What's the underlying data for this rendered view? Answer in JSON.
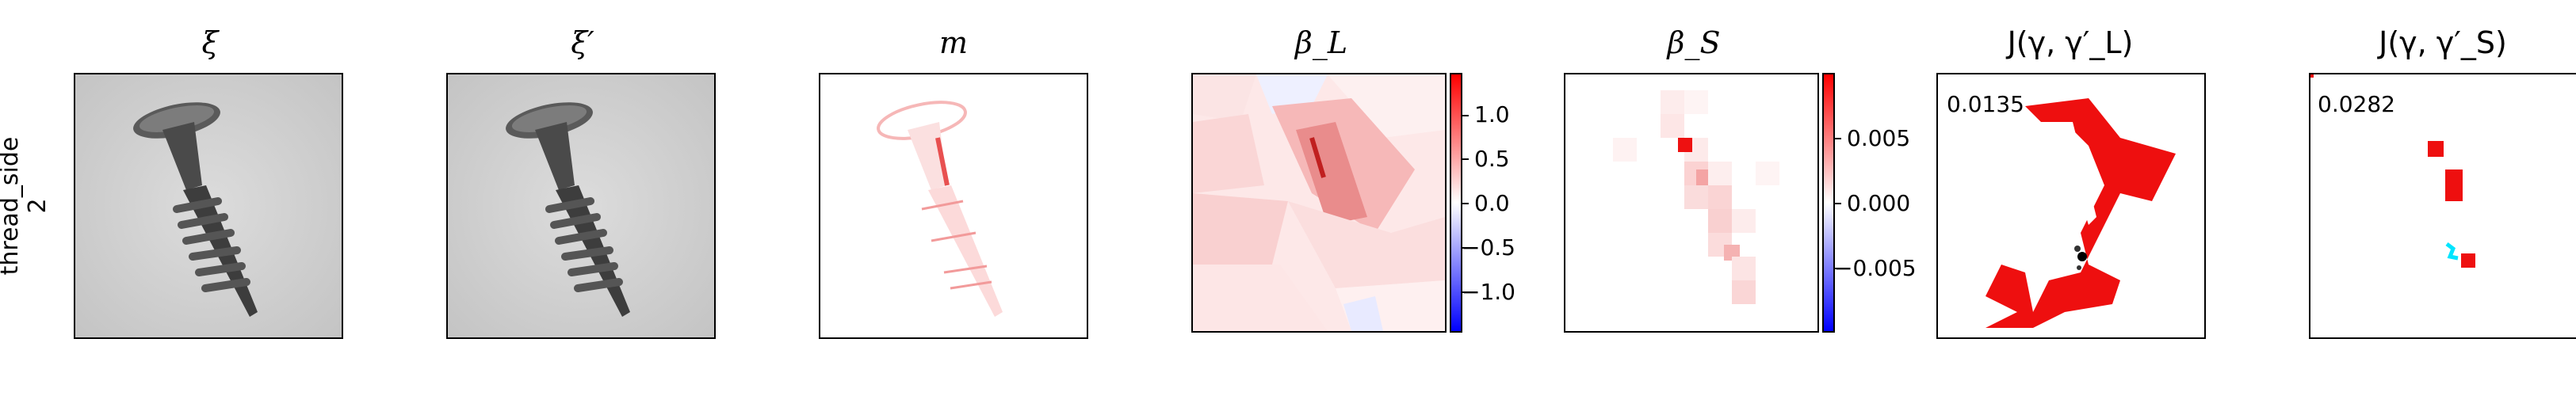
{
  "row_label": [
    "thread_side",
    "2"
  ],
  "titles": [
    "ξ",
    "ξ′",
    "m",
    "β_L",
    "β_S",
    "J(γ, γ′_L)",
    "J(γ, γ′_S)"
  ],
  "colorbar_L": {
    "ticks": [
      "1.0",
      "0.5",
      "0.0",
      "−0.5",
      "−1.0"
    ],
    "range": [
      -1.3,
      1.3
    ]
  },
  "colorbar_S": {
    "ticks": [
      "0.005",
      "0.000",
      "−0.005"
    ],
    "range": [
      -0.0095,
      0.0095
    ]
  },
  "scores": {
    "J_L": "0.0135",
    "J_S": "0.0282"
  },
  "colors": {
    "positive": "#ff0000",
    "negative": "#0000ff",
    "overlay": "#00e5ff",
    "image_bg": "#d6d6d6"
  }
}
